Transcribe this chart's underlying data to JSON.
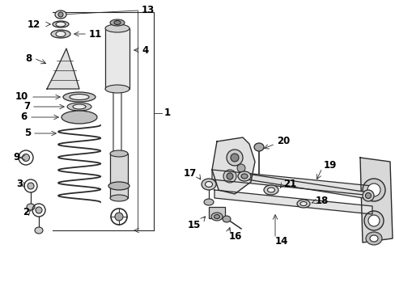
{
  "bg_color": "#ffffff",
  "line_color": "#2a2a2a",
  "label_color": "#000000",
  "fs": 8.5,
  "fig_width": 4.89,
  "fig_height": 3.6,
  "dpi": 100
}
